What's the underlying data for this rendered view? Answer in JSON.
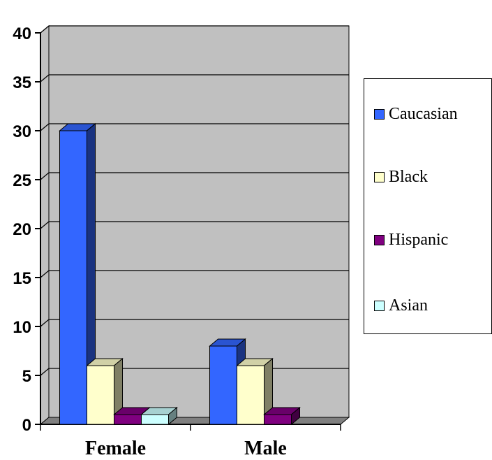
{
  "colors": {
    "wall": "#c0c0c0",
    "floor": "#808080",
    "grid": "#000000"
  },
  "chart_data": {
    "type": "bar",
    "title": "",
    "xlabel": "",
    "ylabel": "",
    "ylim": [
      0,
      40
    ],
    "yticks": [
      0,
      5,
      10,
      15,
      20,
      25,
      30,
      35,
      40
    ],
    "categories": [
      "Female",
      "Male"
    ],
    "grid": true,
    "legend_position": "right",
    "series": [
      {
        "name": "Caucasian",
        "values": [
          30,
          8
        ],
        "color": "#3366ff"
      },
      {
        "name": "Black",
        "values": [
          6,
          6
        ],
        "color": "#ffffcc"
      },
      {
        "name": "Hispanic",
        "values": [
          1,
          1
        ],
        "color": "#800080"
      },
      {
        "name": "Asian",
        "values": [
          1,
          0
        ],
        "color": "#ccffff"
      }
    ]
  }
}
